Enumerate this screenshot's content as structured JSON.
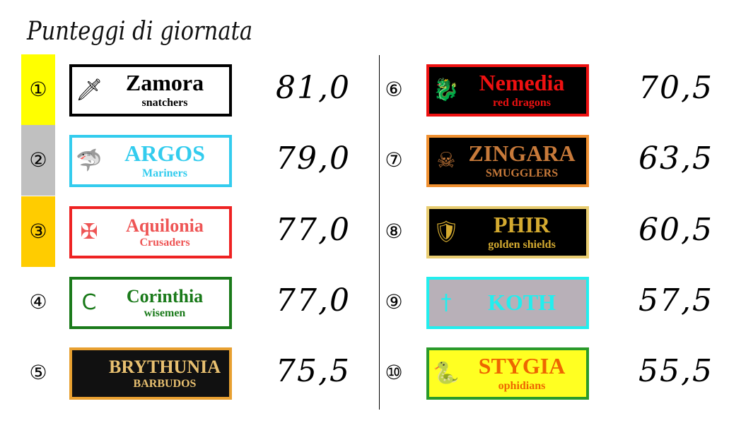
{
  "title": "Punteggi di giornata",
  "podium_colors": [
    "#ffff00",
    "#c0c0c0",
    "#ffcc00"
  ],
  "teams": [
    {
      "rank": "①",
      "name": "Zamora",
      "subtitle": "snatchers",
      "score": "81,0",
      "border": "#000000",
      "bg": "#ffffff",
      "color": "#000000",
      "icon": "dagger-icon"
    },
    {
      "rank": "②",
      "name": "ARGOS",
      "subtitle": "Mariners",
      "score": "79,0",
      "border": "#33ccee",
      "bg": "#ffffff",
      "color": "#33ccee",
      "icon": "shark-icon"
    },
    {
      "rank": "③",
      "name": "Aquilonia",
      "subtitle": "Crusaders",
      "score": "77,0",
      "border": "#ee2222",
      "bg": "#ffffff",
      "color": "#ee5555",
      "icon": "knight-icon"
    },
    {
      "rank": "④",
      "name": "Corinthia",
      "subtitle": "wisemen",
      "score": "77,0",
      "border": "#1a7a1a",
      "bg": "#ffffff",
      "color": "#1a7a1a",
      "icon": "laurel-icon"
    },
    {
      "rank": "⑤",
      "name": "BRYTHUNIA",
      "subtitle": "BARBUDOS",
      "score": "75,5",
      "border": "#e8a030",
      "bg": "#111111",
      "color": "#e8c070",
      "icon": "viking-helmet-icon"
    },
    {
      "rank": "⑥",
      "name": "Nemedia",
      "subtitle": "red dragons",
      "score": "70,5",
      "border": "#ee1111",
      "bg": "#000000",
      "color": "#ee1111",
      "icon": "dragon-icon"
    },
    {
      "rank": "⑦",
      "name": "ZINGARA",
      "subtitle": "SMUGGLERS",
      "score": "63,5",
      "border": "#f09030",
      "bg": "#000000",
      "color": "#c87a3a",
      "icon": "pirate-skull-icon"
    },
    {
      "rank": "⑧",
      "name": "PHIR",
      "subtitle": "golden shields",
      "score": "60,5",
      "border": "#e8cc70",
      "bg": "#000000",
      "color": "#d4aa30",
      "icon": "shield-icon"
    },
    {
      "rank": "⑨",
      "name": "KOTH",
      "subtitle": "",
      "score": "57,5",
      "border": "#22eeee",
      "bg": "#b8b0b8",
      "color": "#22eeee",
      "icon": "sword-icon"
    },
    {
      "rank": "⑩",
      "name": "STYGIA",
      "subtitle": "ophidians",
      "score": "55,5",
      "border": "#2a9a2a",
      "bg": "#ffff22",
      "color": "#ee6600",
      "icon": "snake-icon"
    }
  ]
}
